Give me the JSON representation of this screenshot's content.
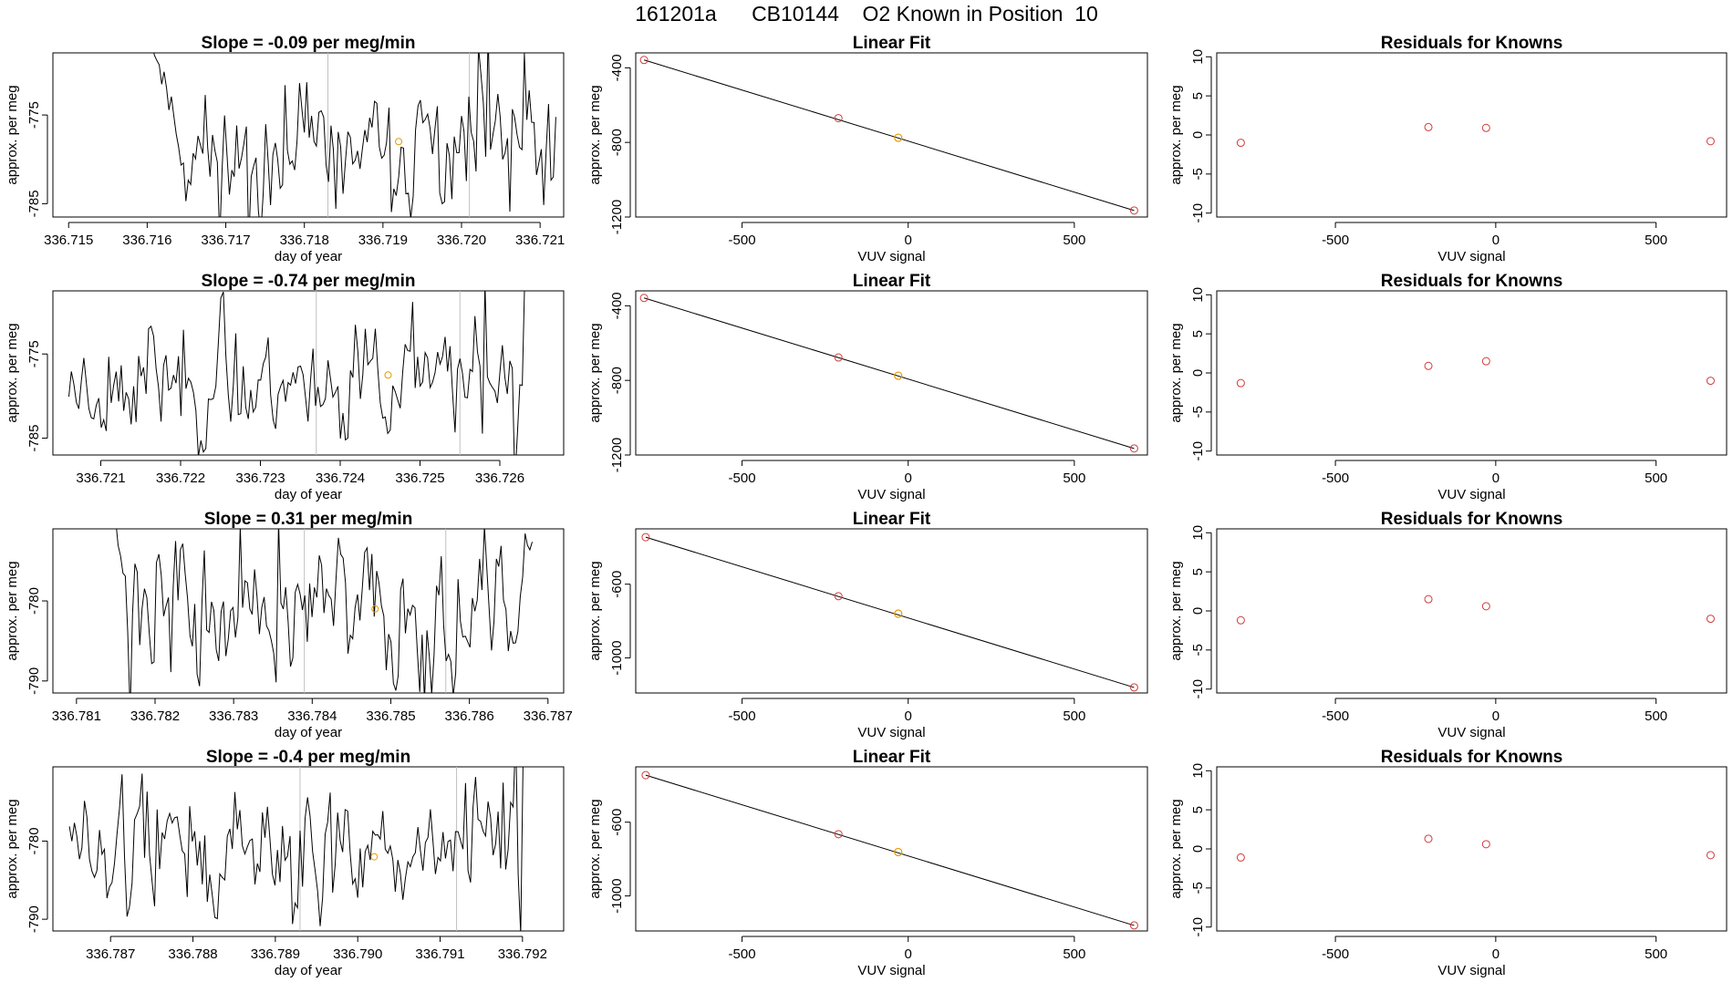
{
  "title": "161201a      CB10144    O2 Known in Position  10",
  "colors": {
    "trace": "#000000",
    "marker_point": "#e69a00",
    "fit_point": "#d33a3a",
    "known_point": "#d33a3a",
    "guide": "#c0c0c0"
  },
  "chart_data": [
    {
      "type": "line",
      "row": 1,
      "title": "Slope =  -0.09  per meg/min",
      "xlabel": "day of year",
      "ylabel": "approx. per meg",
      "xlim": [
        336.7148,
        336.7213
      ],
      "ylim": [
        -786.5,
        -768.0
      ],
      "xticks": [
        336.715,
        336.716,
        336.717,
        336.718,
        336.719,
        336.72,
        336.721
      ],
      "xtick_labels": [
        "336.715",
        "336.716",
        "336.717",
        "336.718",
        "336.719",
        "336.720",
        "336.721"
      ],
      "yticks": [
        -775,
        -785
      ],
      "ytick_labels": [
        "-775",
        "-785"
      ],
      "t_start": 336.716,
      "t_end": 336.7212,
      "n_points": 170,
      "base": -779.5,
      "amp": 3.4,
      "rise_end": 336.7165,
      "rise_from": -765,
      "fall_end": -1,
      "vlines": [
        336.7183,
        336.7201
      ],
      "marker": {
        "x": 336.7192,
        "y": -778.0
      },
      "seed": 11
    },
    {
      "type": "line",
      "row": 2,
      "title": "Slope =  -0.74  per meg/min",
      "xlabel": "day of year",
      "ylabel": "approx. per meg",
      "xlim": [
        336.7204,
        336.7268
      ],
      "ylim": [
        -787.0,
        -767.5
      ],
      "xticks": [
        336.721,
        336.722,
        336.723,
        336.724,
        336.725,
        336.726
      ],
      "xtick_labels": [
        "336.721",
        "336.722",
        "336.723",
        "336.724",
        "336.725",
        "336.726"
      ],
      "yticks": [
        -775,
        -785
      ],
      "ytick_labels": [
        "-775",
        "-785"
      ],
      "t_start": 336.7206,
      "t_end": 336.7265,
      "n_points": 190,
      "base": -778.0,
      "amp": 3.2,
      "rise_end": -1,
      "rise_from": 0,
      "fall_end": 336.7263,
      "vlines": [
        336.7237,
        336.7255
      ],
      "marker": {
        "x": 336.7246,
        "y": -777.5
      },
      "seed": 23
    },
    {
      "type": "line",
      "row": 3,
      "title": "Slope =  0.31  per meg/min",
      "xlabel": "day of year",
      "ylabel": "approx. per meg",
      "xlim": [
        336.7807,
        336.7872
      ],
      "ylim": [
        -791.5,
        -771.0
      ],
      "xticks": [
        336.781,
        336.782,
        336.783,
        336.784,
        336.785,
        336.786,
        336.787
      ],
      "xtick_labels": [
        "336.781",
        "336.782",
        "336.783",
        "336.784",
        "336.785",
        "336.786",
        "336.787"
      ],
      "yticks": [
        -780,
        -790
      ],
      "ytick_labels": [
        "-780",
        "-790"
      ],
      "t_start": 336.7815,
      "t_end": 336.7868,
      "n_points": 175,
      "base": -781.5,
      "amp": 4.0,
      "rise_end": 336.7817,
      "rise_from": -770,
      "fall_end": -1,
      "vlines": [
        336.7839,
        336.7857
      ],
      "marker": {
        "x": 336.7848,
        "y": -781.0
      },
      "seed": 37
    },
    {
      "type": "line",
      "row": 4,
      "title": "Slope =  -0.4  per meg/min",
      "xlabel": "day of year",
      "ylabel": "approx. per meg",
      "xlim": [
        336.7863,
        336.7925
      ],
      "ylim": [
        -791.5,
        -770.5
      ],
      "xticks": [
        336.787,
        336.788,
        336.789,
        336.79,
        336.791,
        336.792
      ],
      "xtick_labels": [
        "336.787",
        "336.788",
        "336.789",
        "336.790",
        "336.791",
        "336.792"
      ],
      "yticks": [
        -780,
        -790
      ],
      "ytick_labels": [
        "-780",
        "-790"
      ],
      "t_start": 336.7865,
      "t_end": 336.7921,
      "n_points": 185,
      "base": -781.0,
      "amp": 3.6,
      "rise_end": -1,
      "rise_from": 0,
      "fall_end": 336.792,
      "vlines": [
        336.7893,
        336.7912
      ],
      "marker": {
        "x": 336.7902,
        "y": -782.0
      },
      "seed": 51
    },
    {
      "type": "scatter",
      "row": 1,
      "title": "Linear Fit",
      "xlabel": "VUV signal",
      "ylabel": "approx. per meg",
      "xlim": [
        -820,
        720
      ],
      "ylim": [
        -1200,
        -320
      ],
      "xticks": [
        -500,
        0,
        500
      ],
      "xtick_labels": [
        "-500",
        "0",
        "500"
      ],
      "yticks": [
        -400,
        -800,
        -1200
      ],
      "ytick_labels": [
        "-400",
        "-800",
        "-1200"
      ],
      "points": [
        {
          "x": -795,
          "y": -358
        },
        {
          "x": -210,
          "y": -670
        },
        {
          "x": 680,
          "y": -1165
        }
      ],
      "highlight": {
        "x": -30,
        "y": -775
      },
      "fit_line": {
        "x": [
          -795,
          680
        ],
        "y": [
          -358,
          -1165
        ]
      }
    },
    {
      "type": "scatter",
      "row": 2,
      "title": "Linear Fit",
      "xlabel": "VUV signal",
      "ylabel": "approx. per meg",
      "xlim": [
        -820,
        720
      ],
      "ylim": [
        -1200,
        -320
      ],
      "xticks": [
        -500,
        0,
        500
      ],
      "xtick_labels": [
        "-500",
        "0",
        "500"
      ],
      "yticks": [
        -400,
        -800,
        -1200
      ],
      "ytick_labels": [
        "-400",
        "-800",
        "-1200"
      ],
      "points": [
        {
          "x": -795,
          "y": -358
        },
        {
          "x": -210,
          "y": -677
        },
        {
          "x": 680,
          "y": -1165
        }
      ],
      "highlight": {
        "x": -30,
        "y": -775
      },
      "fit_line": {
        "x": [
          -795,
          680
        ],
        "y": [
          -358,
          -1165
        ]
      }
    },
    {
      "type": "scatter",
      "row": 3,
      "title": "Linear Fit",
      "xlabel": "VUV signal",
      "ylabel": "approx. per meg",
      "xlim": [
        -820,
        720
      ],
      "ylim": [
        -1190,
        -300
      ],
      "xticks": [
        -500,
        0,
        500
      ],
      "xtick_labels": [
        "-500",
        "0",
        "500"
      ],
      "yticks": [
        -600,
        -1000
      ],
      "ytick_labels": [
        "-600",
        "-1000"
      ],
      "points": [
        {
          "x": -790,
          "y": -345
        },
        {
          "x": -210,
          "y": -665
        },
        {
          "x": 680,
          "y": -1160
        }
      ],
      "highlight": {
        "x": -30,
        "y": -760
      },
      "fit_line": {
        "x": [
          -790,
          680
        ],
        "y": [
          -345,
          -1160
        ]
      }
    },
    {
      "type": "scatter",
      "row": 4,
      "title": "Linear Fit",
      "xlabel": "VUV signal",
      "ylabel": "approx. per meg",
      "xlim": [
        -820,
        720
      ],
      "ylim": [
        -1190,
        -300
      ],
      "xticks": [
        -500,
        0,
        500
      ],
      "xtick_labels": [
        "-500",
        "0",
        "500"
      ],
      "yticks": [
        -600,
        -1000
      ],
      "ytick_labels": [
        "-600",
        "-1000"
      ],
      "points": [
        {
          "x": -790,
          "y": -345
        },
        {
          "x": -210,
          "y": -665
        },
        {
          "x": 680,
          "y": -1160
        }
      ],
      "highlight": {
        "x": -30,
        "y": -762
      },
      "fit_line": {
        "x": [
          -790,
          680
        ],
        "y": [
          -345,
          -1160
        ]
      }
    },
    {
      "type": "scatter",
      "row": 1,
      "title": "Residuals for Knowns",
      "xlabel": "VUV signal",
      "ylabel": "approx. per meg",
      "xlim": [
        -870,
        720
      ],
      "ylim": [
        -10.5,
        10.5
      ],
      "xticks": [
        -500,
        0,
        500
      ],
      "xtick_labels": [
        "-500",
        "0",
        "500"
      ],
      "yticks": [
        10,
        5,
        0,
        -5,
        -10
      ],
      "ytick_labels": [
        "10",
        "5",
        "0",
        "-5",
        "-10"
      ],
      "points": [
        {
          "x": -795,
          "y": -1.0
        },
        {
          "x": -210,
          "y": 1.0
        },
        {
          "x": -30,
          "y": 0.9
        },
        {
          "x": 670,
          "y": -0.8
        }
      ]
    },
    {
      "type": "scatter",
      "row": 2,
      "title": "Residuals for Knowns",
      "xlabel": "VUV signal",
      "ylabel": "approx. per meg",
      "xlim": [
        -870,
        720
      ],
      "ylim": [
        -10.5,
        10.5
      ],
      "xticks": [
        -500,
        0,
        500
      ],
      "xtick_labels": [
        "-500",
        "0",
        "500"
      ],
      "yticks": [
        10,
        5,
        0,
        -5,
        -10
      ],
      "ytick_labels": [
        "10",
        "5",
        "0",
        "-5",
        "-10"
      ],
      "points": [
        {
          "x": -795,
          "y": -1.3
        },
        {
          "x": -210,
          "y": 0.9
        },
        {
          "x": -30,
          "y": 1.5
        },
        {
          "x": 670,
          "y": -1.0
        }
      ]
    },
    {
      "type": "scatter",
      "row": 3,
      "title": "Residuals for Knowns",
      "xlabel": "VUV signal",
      "ylabel": "approx. per meg",
      "xlim": [
        -870,
        720
      ],
      "ylim": [
        -10.5,
        10.5
      ],
      "xticks": [
        -500,
        0,
        500
      ],
      "xtick_labels": [
        "-500",
        "0",
        "500"
      ],
      "yticks": [
        10,
        5,
        0,
        -5,
        -10
      ],
      "ytick_labels": [
        "10",
        "5",
        "0",
        "-5",
        "-10"
      ],
      "points": [
        {
          "x": -795,
          "y": -1.2
        },
        {
          "x": -210,
          "y": 1.5
        },
        {
          "x": -30,
          "y": 0.6
        },
        {
          "x": 670,
          "y": -1.0
        }
      ]
    },
    {
      "type": "scatter",
      "row": 4,
      "title": "Residuals for Knowns",
      "xlabel": "VUV signal",
      "ylabel": "approx. per meg",
      "xlim": [
        -870,
        720
      ],
      "ylim": [
        -10.5,
        10.5
      ],
      "xticks": [
        -500,
        0,
        500
      ],
      "xtick_labels": [
        "-500",
        "0",
        "500"
      ],
      "yticks": [
        10,
        5,
        0,
        -5,
        -10
      ],
      "ytick_labels": [
        "10",
        "5",
        "0",
        "-5",
        "-10"
      ],
      "points": [
        {
          "x": -795,
          "y": -1.1
        },
        {
          "x": -210,
          "y": 1.3
        },
        {
          "x": -30,
          "y": 0.6
        },
        {
          "x": 670,
          "y": -0.8
        }
      ]
    }
  ]
}
